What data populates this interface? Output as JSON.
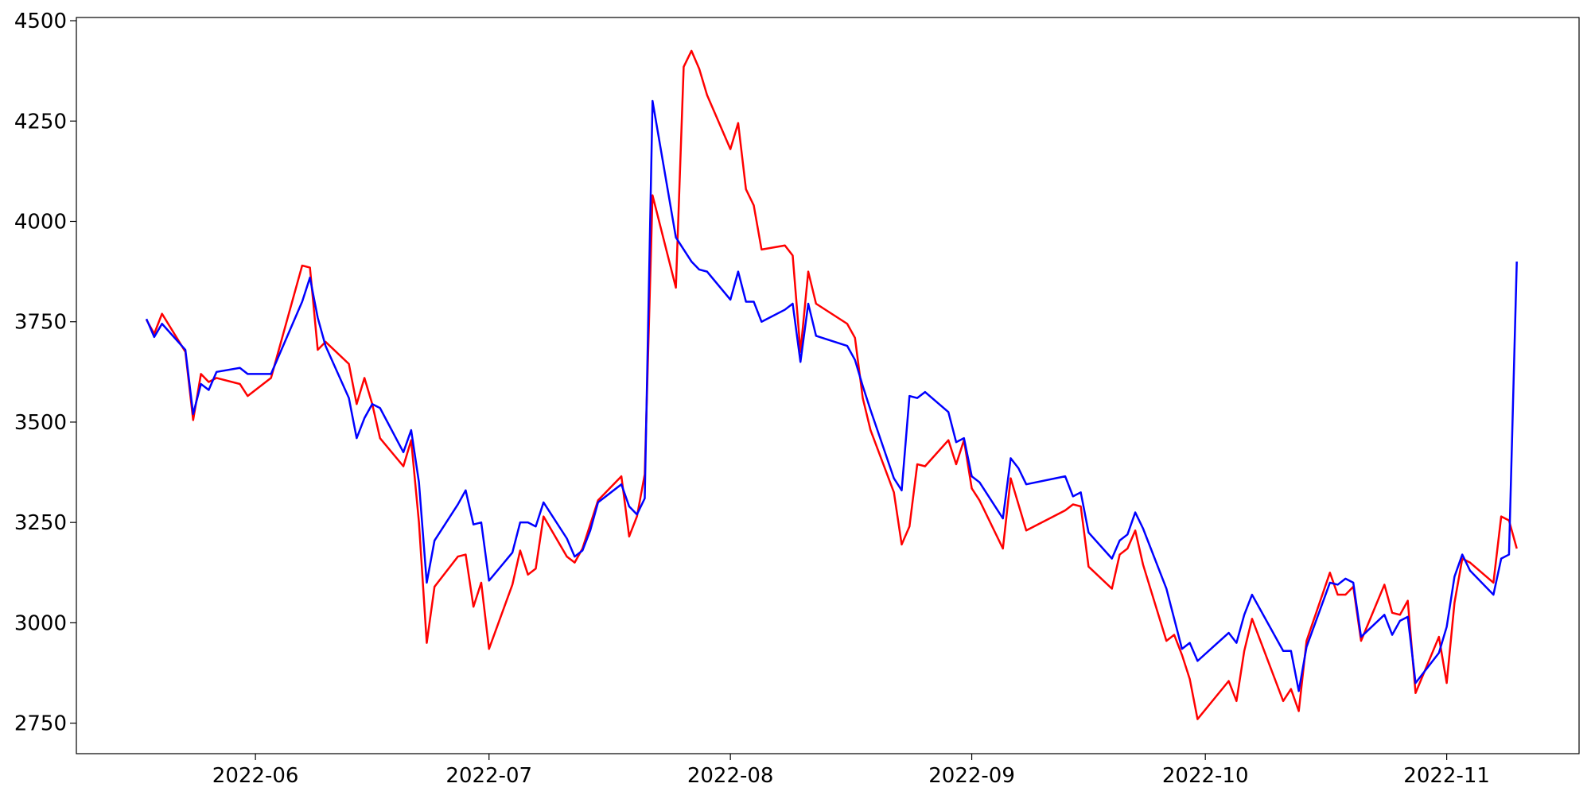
{
  "chart_data": {
    "type": "line",
    "x": [
      "2022-05-18",
      "2022-05-19",
      "2022-05-20",
      "2022-05-23",
      "2022-05-24",
      "2022-05-25",
      "2022-05-26",
      "2022-05-27",
      "2022-05-30",
      "2022-05-31",
      "2022-06-03",
      "2022-06-07",
      "2022-06-08",
      "2022-06-09",
      "2022-06-10",
      "2022-06-13",
      "2022-06-14",
      "2022-06-15",
      "2022-06-16",
      "2022-06-17",
      "2022-06-20",
      "2022-06-21",
      "2022-06-22",
      "2022-06-23",
      "2022-06-24",
      "2022-06-27",
      "2022-06-28",
      "2022-06-29",
      "2022-06-30",
      "2022-07-01",
      "2022-07-04",
      "2022-07-05",
      "2022-07-06",
      "2022-07-07",
      "2022-07-08",
      "2022-07-11",
      "2022-07-12",
      "2022-07-13",
      "2022-07-14",
      "2022-07-15",
      "2022-07-18",
      "2022-07-19",
      "2022-07-20",
      "2022-07-21",
      "2022-07-22",
      "2022-07-25",
      "2022-07-26",
      "2022-07-27",
      "2022-07-28",
      "2022-07-29",
      "2022-08-01",
      "2022-08-02",
      "2022-08-03",
      "2022-08-04",
      "2022-08-05",
      "2022-08-08",
      "2022-08-09",
      "2022-08-10",
      "2022-08-11",
      "2022-08-12",
      "2022-08-16",
      "2022-08-17",
      "2022-08-18",
      "2022-08-19",
      "2022-08-22",
      "2022-08-23",
      "2022-08-24",
      "2022-08-25",
      "2022-08-26",
      "2022-08-29",
      "2022-08-30",
      "2022-08-31",
      "2022-09-01",
      "2022-09-02",
      "2022-09-05",
      "2022-09-06",
      "2022-09-07",
      "2022-09-08",
      "2022-09-13",
      "2022-09-14",
      "2022-09-15",
      "2022-09-16",
      "2022-09-19",
      "2022-09-20",
      "2022-09-21",
      "2022-09-22",
      "2022-09-23",
      "2022-09-26",
      "2022-09-27",
      "2022-09-28",
      "2022-09-29",
      "2022-09-30",
      "2022-10-04",
      "2022-10-05",
      "2022-10-06",
      "2022-10-07",
      "2022-10-11",
      "2022-10-12",
      "2022-10-13",
      "2022-10-14",
      "2022-10-17",
      "2022-10-18",
      "2022-10-19",
      "2022-10-20",
      "2022-10-21",
      "2022-10-24",
      "2022-10-25",
      "2022-10-26",
      "2022-10-27",
      "2022-10-28",
      "2022-10-31",
      "2022-11-01",
      "2022-11-02",
      "2022-11-03",
      "2022-11-04",
      "2022-11-07",
      "2022-11-08",
      "2022-11-09",
      "2022-11-10"
    ],
    "series": [
      {
        "color": "#ff0000",
        "values": [
          3755,
          3720,
          3770,
          3675,
          3505,
          3620,
          3600,
          3610,
          3595,
          3565,
          3610,
          3890,
          3885,
          3680,
          3700,
          3645,
          3545,
          3610,
          3545,
          3460,
          3390,
          3455,
          3250,
          2950,
          3090,
          3165,
          3170,
          3040,
          3100,
          2935,
          3095,
          3180,
          3120,
          3135,
          3265,
          3165,
          3150,
          3185,
          3245,
          3305,
          3365,
          3215,
          3265,
          3370,
          4065,
          3835,
          4385,
          4425,
          4380,
          4315,
          4180,
          4245,
          4080,
          4040,
          3930,
          3940,
          3915,
          3675,
          3875,
          3795,
          3745,
          3710,
          3560,
          3480,
          3325,
          3195,
          3240,
          3395,
          3390,
          3455,
          3395,
          3455,
          3335,
          3305,
          3185,
          3360,
          3295,
          3230,
          3280,
          3295,
          3290,
          3140,
          3085,
          3170,
          3185,
          3230,
          3145,
          2955,
          2970,
          2920,
          2860,
          2760,
          2855,
          2805,
          2930,
          3010,
          2805,
          2835,
          2780,
          2955,
          3125,
          3070,
          3070,
          3090,
          2955,
          3095,
          3025,
          3020,
          3055,
          2825,
          2965,
          2850,
          3050,
          3160,
          3150,
          3100,
          3265,
          3255,
          3185
        ]
      },
      {
        "color": "#0000ff",
        "values": [
          3757,
          3712,
          3745,
          3680,
          3520,
          3595,
          3580,
          3625,
          3635,
          3620,
          3620,
          3800,
          3860,
          3760,
          3690,
          3560,
          3460,
          3510,
          3545,
          3535,
          3425,
          3480,
          3350,
          3100,
          3205,
          3295,
          3330,
          3245,
          3250,
          3105,
          3175,
          3250,
          3250,
          3240,
          3300,
          3210,
          3165,
          3180,
          3230,
          3300,
          3345,
          3290,
          3270,
          3310,
          4300,
          3960,
          3930,
          3900,
          3880,
          3875,
          3805,
          3875,
          3800,
          3800,
          3750,
          3780,
          3795,
          3650,
          3795,
          3715,
          3690,
          3655,
          3590,
          3530,
          3360,
          3330,
          3565,
          3560,
          3575,
          3525,
          3450,
          3460,
          3365,
          3350,
          3260,
          3410,
          3385,
          3345,
          3365,
          3315,
          3325,
          3225,
          3160,
          3205,
          3220,
          3275,
          3235,
          3085,
          3010,
          2935,
          2950,
          2905,
          2975,
          2950,
          3020,
          3070,
          2930,
          2930,
          2830,
          2940,
          3100,
          3095,
          3110,
          3100,
          2965,
          3020,
          2970,
          3005,
          3015,
          2850,
          2925,
          2990,
          3115,
          3170,
          3130,
          3070,
          3160,
          3170,
          3900
        ]
      }
    ],
    "xlim": [
      "2022-05-09",
      "2022-11-18"
    ],
    "xticks": [
      {
        "value": "2022-06-01",
        "label": "2022-06"
      },
      {
        "value": "2022-07-01",
        "label": "2022-07"
      },
      {
        "value": "2022-08-01",
        "label": "2022-08"
      },
      {
        "value": "2022-09-01",
        "label": "2022-09"
      },
      {
        "value": "2022-10-01",
        "label": "2022-10"
      },
      {
        "value": "2022-11-01",
        "label": "2022-11"
      }
    ],
    "ylim": [
      2674,
      4508
    ],
    "yticks": [
      2750,
      3000,
      3250,
      3500,
      3750,
      4000,
      4250,
      4500
    ],
    "grid": false
  }
}
